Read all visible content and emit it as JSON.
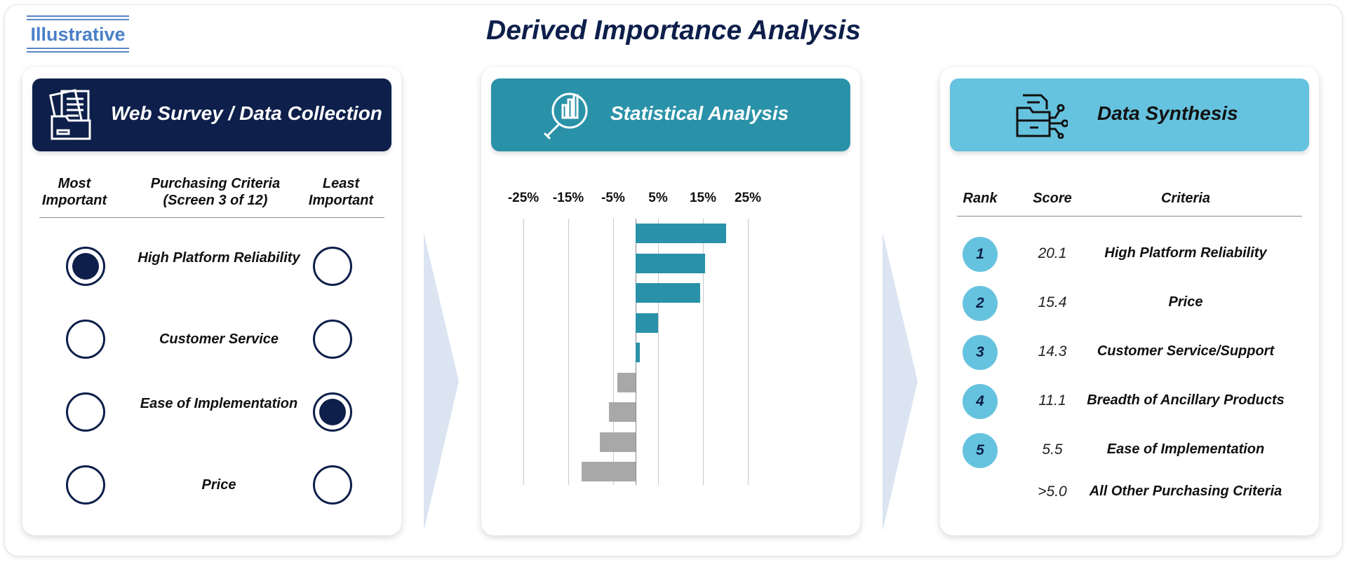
{
  "badge": "Illustrative",
  "title": "Derived Importance Analysis",
  "colors": {
    "navy": "#0d1f4a",
    "teal": "#2a92a8",
    "lightblue": "#66c3df",
    "gray": "#a8a8a8"
  },
  "panels": {
    "survey": {
      "title": "Web Survey / Data Collection",
      "icon": "folder-documents-icon",
      "headers": {
        "most": "Most Important",
        "criteria": "Purchasing Criteria (Screen 3 of 12)",
        "least": "Least Important"
      },
      "rows": [
        {
          "label": "High Platform Reliability",
          "most": true,
          "least": false
        },
        {
          "label": "Customer Service",
          "most": false,
          "least": false
        },
        {
          "label": "Ease of Implementation",
          "most": false,
          "least": true
        },
        {
          "label": "Price",
          "most": false,
          "least": false
        }
      ]
    },
    "stats": {
      "title": "Statistical Analysis",
      "icon": "magnifier-chart-icon"
    },
    "synthesis": {
      "title": "Data Synthesis",
      "icon": "document-network-icon",
      "headers": {
        "rank": "Rank",
        "score": "Score",
        "criteria": "Criteria"
      },
      "rows": [
        {
          "rank": "1",
          "score": "20.1",
          "criteria": "High Platform Reliability"
        },
        {
          "rank": "2",
          "score": "15.4",
          "criteria": "Price"
        },
        {
          "rank": "3",
          "score": "14.3",
          "criteria": "Customer Service/Support"
        },
        {
          "rank": "4",
          "score": "11.1",
          "criteria": "Breadth of Ancillary Products"
        },
        {
          "rank": "5",
          "score": "5.5",
          "criteria": "Ease of Implementation"
        },
        {
          "rank": "",
          "score": ">5.0",
          "criteria": "All Other Purchasing Criteria"
        }
      ]
    }
  },
  "chart_data": {
    "type": "bar",
    "orientation": "horizontal",
    "xticks": [
      "-25%",
      "-15%",
      "-5%",
      "5%",
      "15%",
      "25%"
    ],
    "xtick_values": [
      -25,
      -15,
      -5,
      5,
      15,
      25
    ],
    "xlim": [
      -25,
      25
    ],
    "values": [
      20.1,
      15.4,
      14.3,
      5.0,
      1.0,
      -4.0,
      -6.0,
      -8.0,
      -12.0
    ],
    "grid": true
  }
}
